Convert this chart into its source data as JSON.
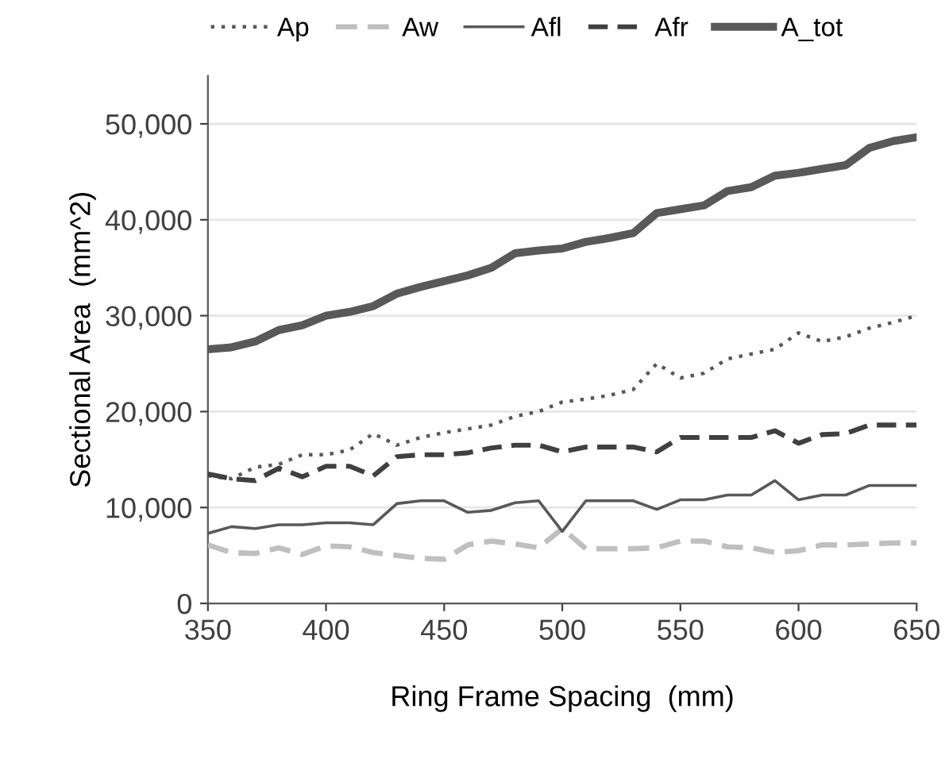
{
  "chart_data": {
    "type": "line",
    "xlabel": "Ring Frame Spacing  (mm)",
    "ylabel": "Sectional Area  (mm^2)",
    "x": [
      350,
      360,
      370,
      380,
      390,
      400,
      410,
      420,
      430,
      440,
      450,
      460,
      470,
      480,
      490,
      500,
      510,
      520,
      530,
      540,
      550,
      560,
      570,
      580,
      590,
      600,
      610,
      620,
      630,
      640,
      650
    ],
    "series": [
      {
        "name": "Ap",
        "color": "#595959",
        "line_style": "dotted",
        "values": [
          13300,
          13000,
          14200,
          14500,
          15500,
          15500,
          16000,
          17700,
          16500,
          17300,
          17800,
          18200,
          18600,
          19500,
          20000,
          21000,
          21300,
          21700,
          22300,
          25000,
          23500,
          24000,
          25500,
          26000,
          26500,
          28200,
          27300,
          27800,
          28700,
          29300,
          30000
        ]
      },
      {
        "name": "Aw",
        "color": "#bfbfbf",
        "line_style": "dashed",
        "values": [
          6100,
          5300,
          5200,
          5800,
          5100,
          6000,
          5900,
          5300,
          5000,
          4700,
          4600,
          6100,
          6500,
          6200,
          5800,
          7800,
          5700,
          5700,
          5700,
          5800,
          6500,
          6500,
          5900,
          5800,
          5300,
          5500,
          6100,
          6100,
          6200,
          6300,
          6300
        ]
      },
      {
        "name": "Afl",
        "color": "#595959",
        "line_style": "solid",
        "values": [
          7300,
          8000,
          7800,
          8200,
          8200,
          8400,
          8400,
          8200,
          10400,
          10700,
          10700,
          9500,
          9700,
          10500,
          10700,
          7500,
          10700,
          10700,
          10700,
          9800,
          10800,
          10800,
          11300,
          11300,
          12800,
          10800,
          11300,
          11300,
          12300,
          12300,
          12300
        ]
      },
      {
        "name": "Afr",
        "color": "#404040",
        "line_style": "dashed",
        "values": [
          13500,
          13000,
          12800,
          14100,
          13200,
          14300,
          14300,
          13300,
          15300,
          15500,
          15500,
          15700,
          16200,
          16500,
          16500,
          15800,
          16300,
          16300,
          16300,
          15800,
          17300,
          17300,
          17300,
          17300,
          18000,
          16700,
          17600,
          17700,
          18600,
          18600,
          18600
        ]
      },
      {
        "name": "A_tot",
        "color": "#595959",
        "line_style": "solid",
        "values": [
          26500,
          26700,
          27300,
          28500,
          29000,
          30000,
          30400,
          31000,
          32300,
          33000,
          33600,
          34200,
          35000,
          36500,
          36800,
          37000,
          37700,
          38100,
          38600,
          40700,
          41100,
          41500,
          43000,
          43400,
          44600,
          44900,
          45300,
          45700,
          47500,
          48200,
          48600
        ]
      }
    ],
    "xlim": [
      350,
      650
    ],
    "xticks": [
      350,
      400,
      450,
      500,
      550,
      600,
      650
    ],
    "ylim": [
      0,
      55000
    ],
    "yticks": [
      {
        "value": 0,
        "label": "0"
      },
      {
        "value": 10000,
        "label": "10,000"
      },
      {
        "value": 20000,
        "label": "20,000"
      },
      {
        "value": 30000,
        "label": "30,000"
      },
      {
        "value": 40000,
        "label": "40,000"
      },
      {
        "value": 50000,
        "label": "50,000"
      }
    ],
    "grid": "y",
    "legend": "top",
    "marker": "none"
  }
}
